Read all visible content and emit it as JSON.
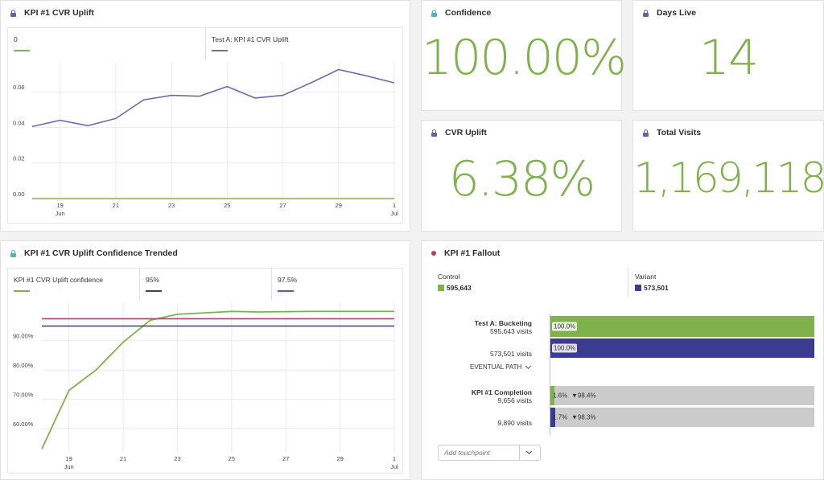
{
  "colors": {
    "green": "#7fb24c",
    "purple": "#6c6caa",
    "navy": "#3b3b8f",
    "magenta": "#b43a7c",
    "teal": "#4fb3bf",
    "gray_bar": "#cbcbcb"
  },
  "panels": {
    "cvr_uplift_chart": {
      "title": "KPI #1 CVR Uplift",
      "icon": "lock-icon"
    },
    "confidence": {
      "title": "Confidence",
      "value": "100.00%",
      "icon": "lock-icon"
    },
    "days_live": {
      "title": "Days Live",
      "value": "14",
      "icon": "lock-icon"
    },
    "cvr_uplift": {
      "title": "CVR Uplift",
      "value": "6.38%",
      "icon": "lock-icon"
    },
    "total_visits": {
      "title": "Total Visits",
      "value": "1,169,118",
      "icon": "lock-icon"
    },
    "confidence_trended": {
      "title": "KPI #1 CVR Uplift Confidence Trended",
      "icon": "lock-icon"
    },
    "fallout": {
      "title": "KPI #1 Fallout",
      "icon": "dot-icon",
      "legend": [
        {
          "name": "Control",
          "value": "595,643"
        },
        {
          "name": "Variant",
          "value": "573,501"
        }
      ],
      "steps": [
        {
          "name": "Test A: Bucketing",
          "rows": [
            {
              "visits": "595,643 visits",
              "pct": "100.0%",
              "fill": 1.0,
              "drop": ""
            },
            {
              "visits": "573,501 visits",
              "pct": "100.0%",
              "fill": 1.0,
              "drop": ""
            }
          ]
        },
        {
          "name": "KPI #1 Completion",
          "rows": [
            {
              "visits": "9,656 visits",
              "pct": "1.6%",
              "fill": 0.016,
              "drop": "▼98.4%"
            },
            {
              "visits": "9,890 visits",
              "pct": "1.7%",
              "fill": 0.017,
              "drop": "▼98.3%"
            }
          ]
        }
      ],
      "eventual_path": "EVENTUAL PATH",
      "add_touchpoint_placeholder": "Add touchpoint"
    }
  },
  "chart_data": [
    {
      "type": "line",
      "legend": [
        "0",
        "Test A: KPI #1 CVR Uplift"
      ],
      "x_ticks": [
        "19",
        "21",
        "23",
        "25",
        "27",
        "29",
        "1"
      ],
      "x_subticks": [
        "Jun",
        "",
        "",
        "",
        "",
        "",
        "Jul"
      ],
      "y_ticks": [
        "0.00",
        "0.02",
        "0.04",
        "0.06"
      ],
      "ylim": [
        0,
        0.075
      ],
      "x": [
        "18",
        "19",
        "20",
        "21",
        "22",
        "23",
        "24",
        "25",
        "26",
        "27",
        "28",
        "29",
        "30",
        "1"
      ],
      "series": [
        {
          "name": "0",
          "values": [
            0,
            0,
            0,
            0,
            0,
            0,
            0,
            0,
            0,
            0,
            0,
            0,
            0,
            0
          ]
        },
        {
          "name": "Test A: KPI #1 CVR Uplift",
          "values": [
            0.0405,
            0.044,
            0.041,
            0.045,
            0.0555,
            0.058,
            0.0575,
            0.063,
            0.0565,
            0.058,
            0.065,
            0.0725,
            0.069,
            0.065
          ]
        }
      ]
    },
    {
      "type": "line",
      "legend": [
        "KPI #1 CVR Uplift confidence",
        "95%",
        "97.5%"
      ],
      "x_ticks": [
        "19",
        "21",
        "23",
        "25",
        "27",
        "29",
        "1"
      ],
      "x_subticks": [
        "Jun",
        "",
        "",
        "",
        "",
        "",
        "Jul"
      ],
      "y_ticks": [
        "60.00%",
        "70.00%",
        "80.00%",
        "90.00%"
      ],
      "ylim": [
        0.52,
        1.02
      ],
      "x": [
        "18",
        "19",
        "20",
        "21",
        "22",
        "23",
        "24",
        "25",
        "26",
        "27",
        "28",
        "29",
        "30",
        "1"
      ],
      "series": [
        {
          "name": "KPI #1 CVR Uplift confidence",
          "values": [
            0.53,
            0.73,
            0.8,
            0.895,
            0.97,
            0.99,
            0.995,
            1.0,
            0.998,
            0.999,
            1.0,
            1.0,
            1.0,
            1.0
          ]
        },
        {
          "name": "95%",
          "values": [
            0.95,
            0.95,
            0.95,
            0.95,
            0.95,
            0.95,
            0.95,
            0.95,
            0.95,
            0.95,
            0.95,
            0.95,
            0.95,
            0.95
          ]
        },
        {
          "name": "97.5%",
          "values": [
            0.975,
            0.975,
            0.975,
            0.975,
            0.975,
            0.975,
            0.975,
            0.975,
            0.975,
            0.975,
            0.975,
            0.975,
            0.975,
            0.975
          ]
        }
      ]
    }
  ]
}
